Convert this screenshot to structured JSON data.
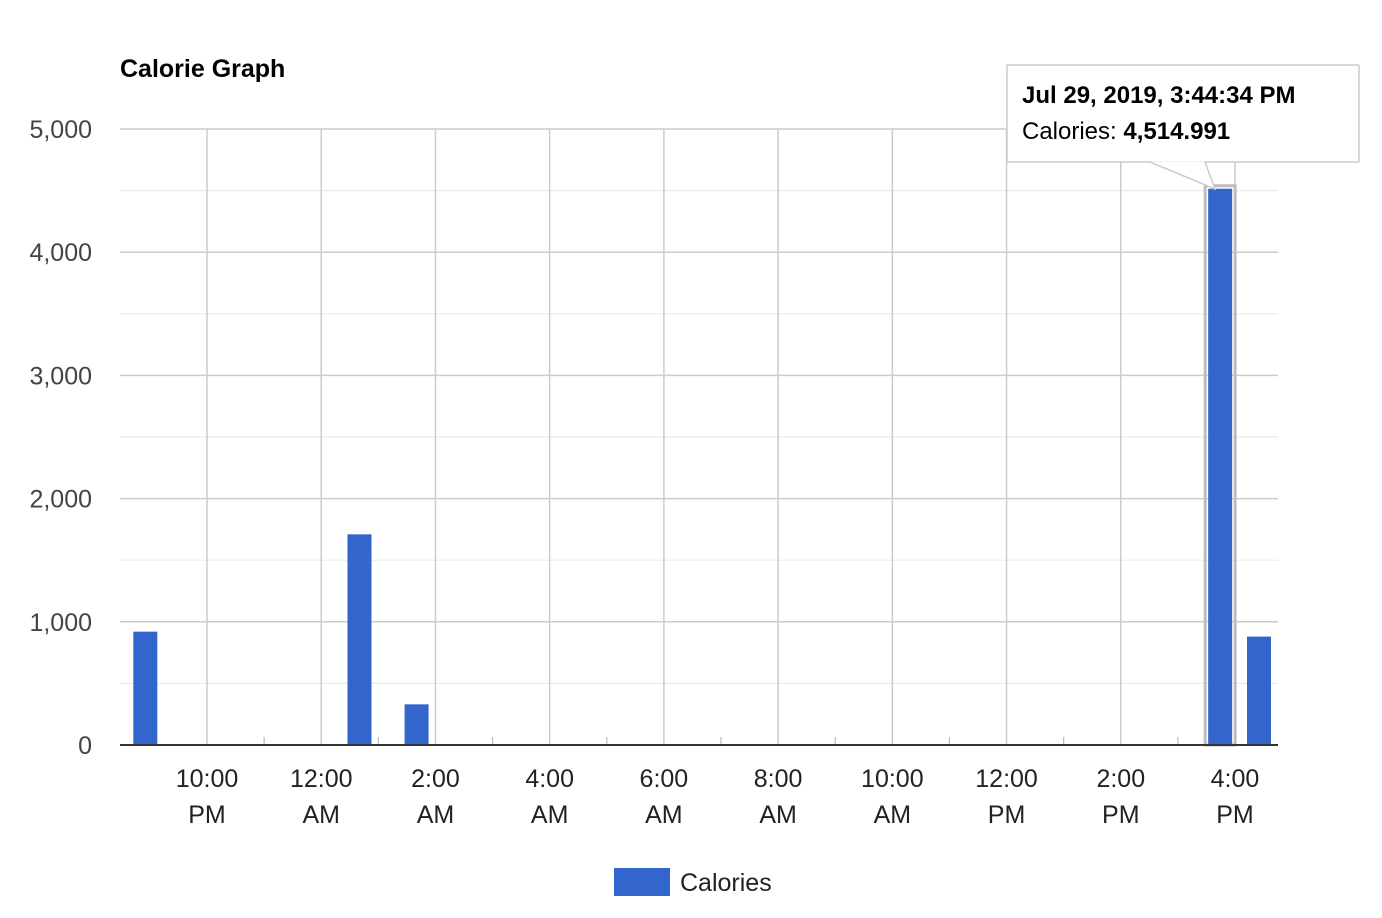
{
  "chart_data": {
    "type": "bar",
    "title": "Calorie Graph",
    "xlabel": "",
    "ylabel": "",
    "ylim": [
      0,
      5000
    ],
    "yticks": [
      0,
      1000,
      2000,
      3000,
      4000,
      5000
    ],
    "ytick_labels": [
      "0",
      "1,000",
      "2,000",
      "3,000",
      "4,000",
      "5,000"
    ],
    "x_ticks": [
      {
        "time": "10:00 PM",
        "day_offset": 0,
        "hour": 22,
        "line1": "10:00",
        "line2": "PM"
      },
      {
        "time": "12:00 AM",
        "day_offset": 1,
        "hour": 0,
        "line1": "12:00",
        "line2": "AM"
      },
      {
        "time": "2:00 AM",
        "day_offset": 1,
        "hour": 2,
        "line1": "2:00",
        "line2": "AM"
      },
      {
        "time": "4:00 AM",
        "day_offset": 1,
        "hour": 4,
        "line1": "4:00",
        "line2": "AM"
      },
      {
        "time": "6:00 AM",
        "day_offset": 1,
        "hour": 6,
        "line1": "6:00",
        "line2": "AM"
      },
      {
        "time": "8:00 AM",
        "day_offset": 1,
        "hour": 8,
        "line1": "8:00",
        "line2": "AM"
      },
      {
        "time": "10:00 AM",
        "day_offset": 1,
        "hour": 10,
        "line1": "10:00",
        "line2": "AM"
      },
      {
        "time": "12:00 PM",
        "day_offset": 1,
        "hour": 12,
        "line1": "12:00",
        "line2": "PM"
      },
      {
        "time": "2:00 PM",
        "day_offset": 1,
        "hour": 14,
        "line1": "2:00",
        "line2": "PM"
      },
      {
        "time": "4:00 PM",
        "day_offset": 1,
        "hour": 16,
        "line1": "4:00",
        "line2": "PM"
      }
    ],
    "series": [
      {
        "name": "Calories",
        "color": "#3366cc",
        "points": [
          {
            "x": "8:55 PM",
            "day_offset": 0,
            "hour": 20.92,
            "y": 920
          },
          {
            "x": "12:40 AM",
            "day_offset": 1,
            "hour": 0.67,
            "y": 1710
          },
          {
            "x": "1:40 AM",
            "day_offset": 1,
            "hour": 1.67,
            "y": 330
          },
          {
            "x": "3:44:34 PM",
            "day_offset": 1,
            "hour": 15.74,
            "y": 4514.991
          },
          {
            "x": "4:25 PM",
            "day_offset": 1,
            "hour": 16.42,
            "y": 880
          }
        ]
      }
    ],
    "legend": {
      "position": "bottom",
      "label": "Calories"
    },
    "grid": true,
    "tooltip": {
      "title": "Jul 29, 2019, 3:44:34 PM",
      "label": "Calories: ",
      "value": "4,514.991",
      "point_index": 3
    }
  }
}
